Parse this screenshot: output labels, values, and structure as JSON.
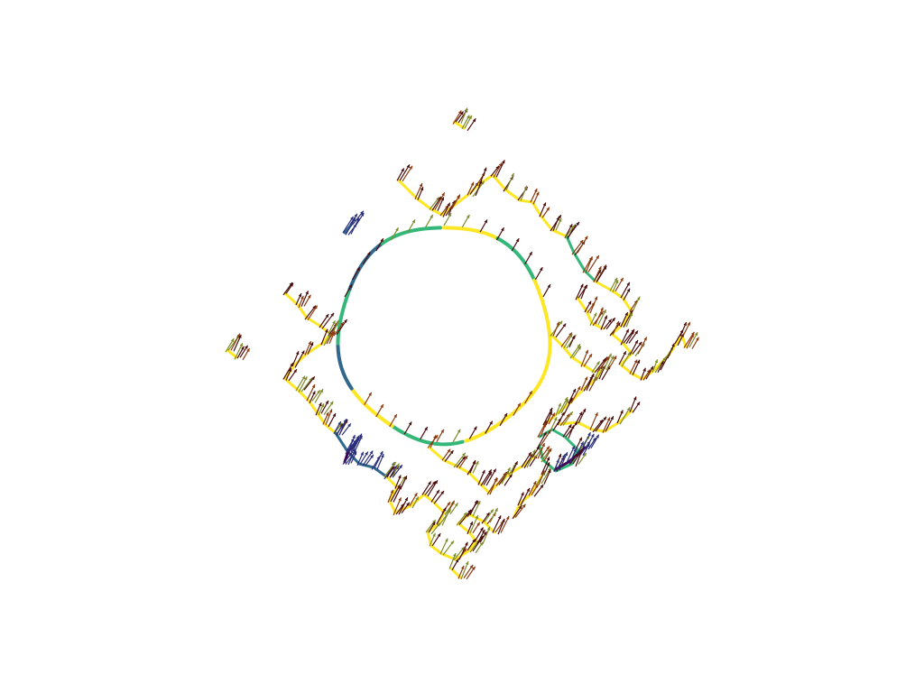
{
  "scene": {
    "background_color": "#ffffff",
    "colormap": "viridis",
    "line_color_high": "#fde725",
    "line_color_mid": "#35b779",
    "line_color_low": "#31688e",
    "line_color_min": "#440154",
    "arrow_color_dark": "#4a0c0c",
    "arrow_color_warm": "#8b3a0f",
    "arrow_color_olive": "#7f8a2a",
    "arrow_color_navy": "#2b2f7a"
  },
  "layers": [
    "boundary-curves",
    "normal-vector-glyphs"
  ]
}
